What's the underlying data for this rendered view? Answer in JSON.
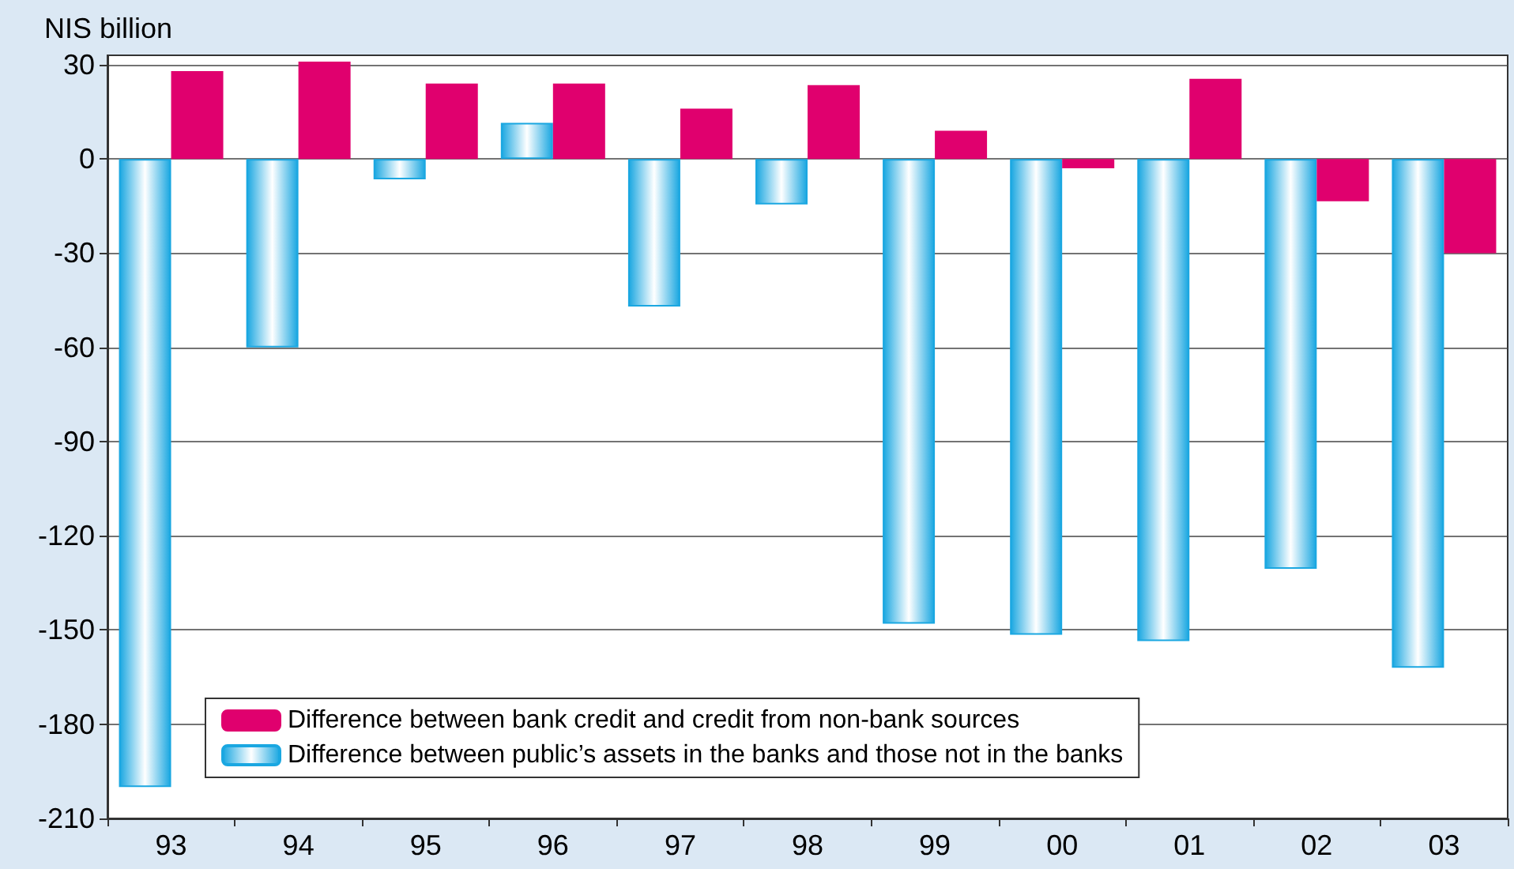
{
  "chart_data": {
    "type": "bar",
    "ylabel": "NIS billion",
    "categories": [
      "93",
      "94",
      "95",
      "96",
      "97",
      "98",
      "99",
      "00",
      "01",
      "02",
      "03"
    ],
    "series": [
      {
        "name": "Difference between public’s assets in the banks and those not in the banks",
        "color": "#1aa7e1",
        "values": [
          -200,
          -60,
          -6.5,
          11.5,
          -47,
          -14.5,
          -148,
          -151.5,
          -153.5,
          -130.5,
          -162
        ]
      },
      {
        "name": "Difference between bank credit and credit from non-bank sources",
        "color": "#e0006e",
        "values": [
          28,
          31,
          24,
          24,
          16,
          23.5,
          9,
          -3,
          25.5,
          -13.5,
          -30
        ]
      }
    ],
    "ylim": [
      -210,
      33
    ],
    "yticks": [
      -210,
      -180,
      -150,
      -120,
      -90,
      -60,
      -30,
      0,
      30
    ],
    "grid": "y",
    "legend": "bottom"
  }
}
